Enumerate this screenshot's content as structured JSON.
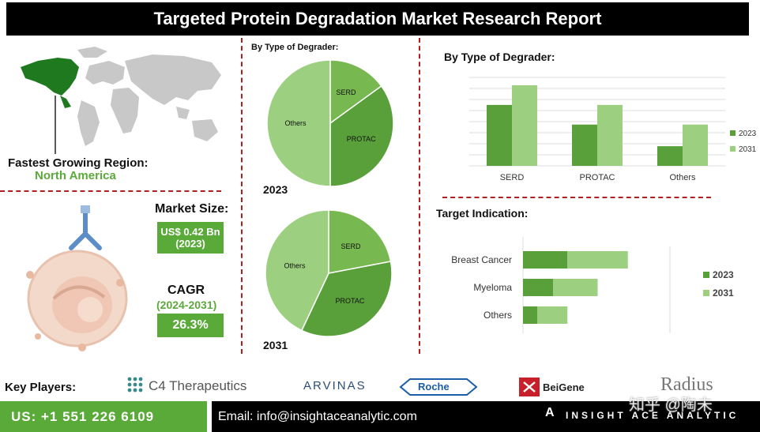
{
  "title": "Targeted Protein Degradation Market Research Report",
  "region": {
    "label": "Fastest Growing Region:",
    "value": "North America"
  },
  "market_size": {
    "label": "Market Size:",
    "value_line1": "US$ 0.42 Bn",
    "value_line2": "(2023)"
  },
  "cagr": {
    "label": "CAGR",
    "period": "(2024-2031)",
    "value": "26.3%"
  },
  "pie_section": {
    "heading": "By Type of Degrader:",
    "year_top": "2023",
    "year_bottom": "2031"
  },
  "bar_section": {
    "heading": "By Type of Degrader:"
  },
  "target_section": {
    "heading": "Target Indication:"
  },
  "key_players": {
    "label": "Key Players:",
    "c4": "C4 Therapeutics",
    "arvinas": "ARVINAS",
    "roche": "Roche",
    "beigene": "BeiGene",
    "radius": "Radius"
  },
  "footer": {
    "phone": "US: +1 551 226 6109",
    "email": "Email: info@insightaceanalytic.com",
    "brand": "INSIGHT ACE ANALYTIC",
    "watermark": "知乎 @陶未"
  },
  "colors": {
    "dark_green": "#5aa03a",
    "light_green": "#9cd080",
    "mid_green": "#78b850",
    "accent_red": "#b02020"
  },
  "chart_data": [
    {
      "type": "pie",
      "categories": [
        "SERD",
        "PROTAC",
        "Others"
      ],
      "values": [
        15,
        35,
        50
      ],
      "title": "2023"
    },
    {
      "type": "pie",
      "categories": [
        "SERD",
        "PROTAC",
        "Others"
      ],
      "values": [
        22,
        35,
        43
      ],
      "title": "2031"
    },
    {
      "type": "bar",
      "categories": [
        "SERD",
        "PROTAC",
        "Others"
      ],
      "series": [
        {
          "name": "2023",
          "values": [
            6.2,
            4.2,
            2.0
          ]
        },
        {
          "name": "2031",
          "values": [
            8.2,
            6.2,
            4.2
          ]
        }
      ],
      "title": "By Type of Degrader:",
      "ylim": [
        0,
        9
      ],
      "grid": true,
      "legend": "right"
    },
    {
      "type": "bar",
      "orientation": "horizontal",
      "stacked": true,
      "categories": [
        "Breast Cancer",
        "Myeloma",
        "Others"
      ],
      "series": [
        {
          "name": "2023",
          "values": [
            2.5,
            1.7,
            0.8
          ]
        },
        {
          "name": "2031",
          "values": [
            3.4,
            2.5,
            1.7
          ]
        }
      ],
      "title": "Target Indication:",
      "legend": "right"
    }
  ]
}
